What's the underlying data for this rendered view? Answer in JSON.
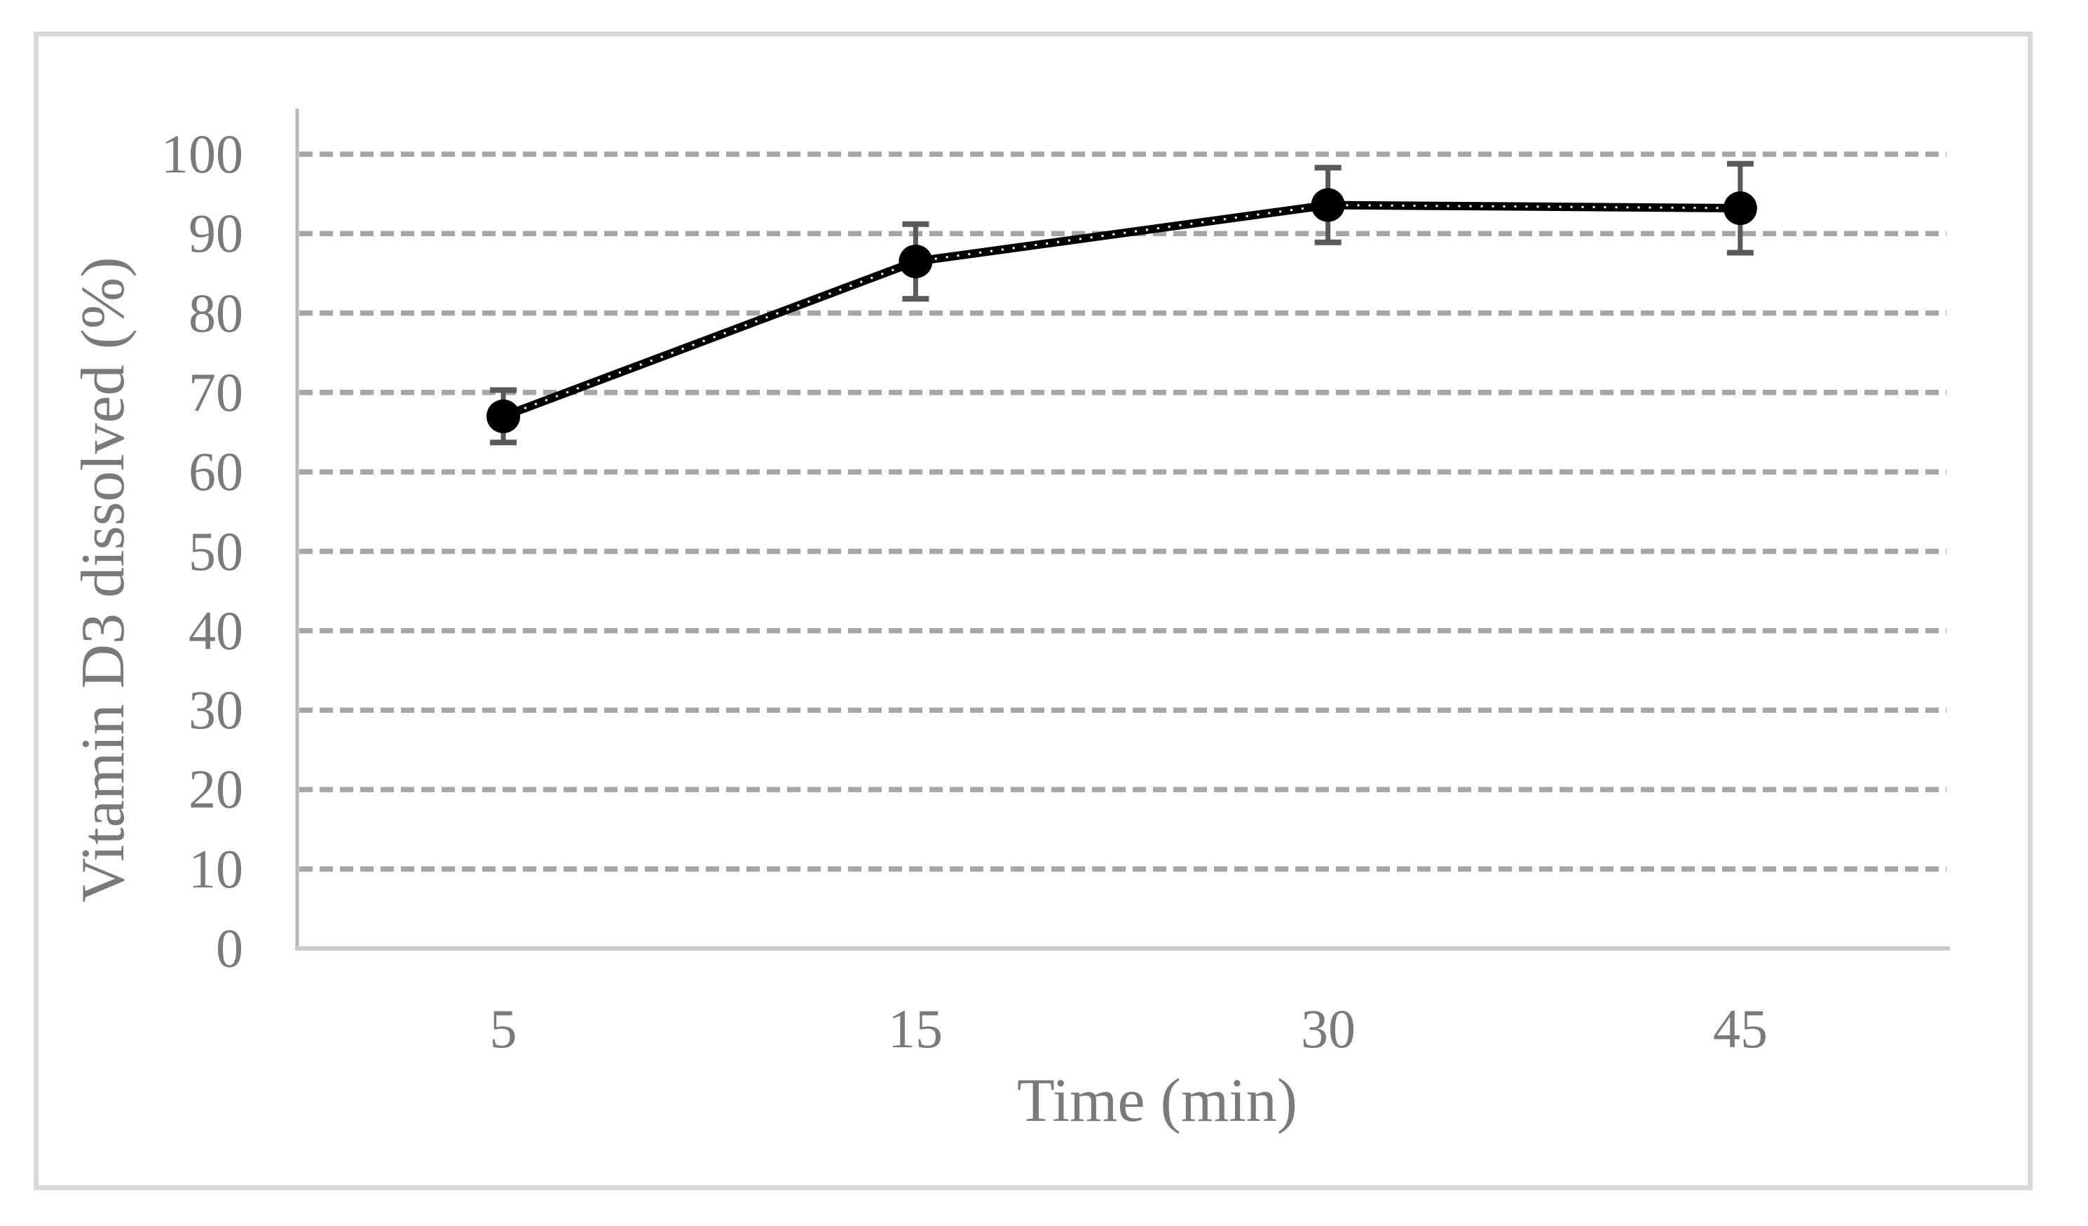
{
  "figure": {
    "background_color": "#ffffff",
    "border_color": "#d9d9d9"
  },
  "chart_data": {
    "type": "line",
    "title": "",
    "xlabel": "Time (min)",
    "ylabel": "Vitamin D3 dissolved (%)",
    "categories": [
      "5",
      "15",
      "30",
      "45"
    ],
    "series": [
      {
        "name": "Vitamin D3 dissolved",
        "values": [
          67,
          86.5,
          93.6,
          93.2
        ],
        "errors": [
          3.3,
          4.7,
          4.7,
          5.6
        ]
      }
    ],
    "ylim": [
      0,
      100
    ],
    "yticks": [
      0,
      10,
      20,
      30,
      40,
      50,
      60,
      70,
      80,
      90,
      100
    ],
    "grid": "horizontal-dashed",
    "legend": "none",
    "style": {
      "line_color": "#000000",
      "line_dot_color": "#ffffff",
      "marker_color": "#000000",
      "error_bar_color": "#595959",
      "gridline_color": "#a6a6a6",
      "y_axis_line_color": "#b9b9b9",
      "x_axis_line_color": "#c9c9c9",
      "text_color": "#7a7a7a"
    }
  }
}
